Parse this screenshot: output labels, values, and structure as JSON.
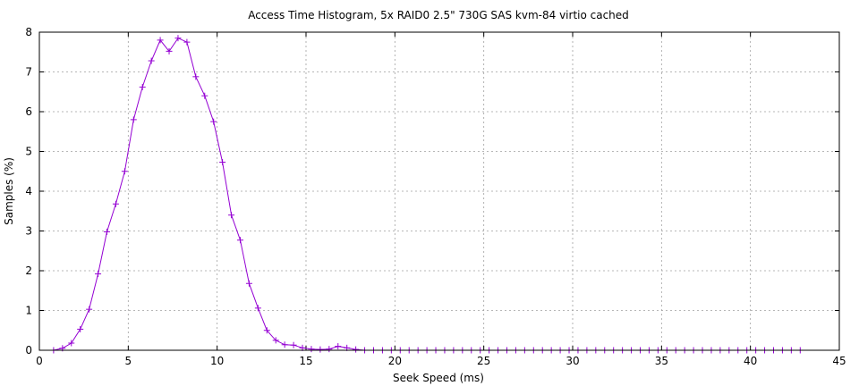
{
  "chart_data": {
    "type": "line",
    "title": "Access Time Histogram, 5x RAID0 2.5\" 730G SAS kvm-84 virtio cached",
    "xlabel": "Seek Speed (ms)",
    "ylabel": "Samples (%)",
    "xlim": [
      0,
      45
    ],
    "ylim": [
      0,
      8
    ],
    "xticks": [
      0,
      5,
      10,
      15,
      20,
      25,
      30,
      35,
      40,
      45
    ],
    "yticks": [
      0,
      1,
      2,
      3,
      4,
      5,
      6,
      7,
      8
    ],
    "grid": true,
    "series_color": "#9400d3",
    "series": [
      {
        "x": [
          0.8,
          1.3,
          1.8,
          2.3,
          2.8,
          3.3,
          3.8,
          4.3,
          4.8,
          5.3,
          5.8,
          6.3,
          6.8,
          7.3,
          7.8,
          8.3,
          8.8,
          9.3,
          9.8,
          10.3,
          10.8,
          11.3,
          11.8,
          12.3,
          12.8,
          13.3,
          13.8,
          14.3,
          14.8,
          15.3,
          15.8,
          16.3,
          16.8,
          17.3,
          17.8,
          18.3,
          18.8,
          19.3,
          19.8,
          20.3,
          20.8,
          21.3,
          21.8,
          22.3,
          22.8,
          23.3,
          23.8,
          24.3,
          24.8,
          25.3,
          25.8,
          26.3,
          26.8,
          27.3,
          27.8,
          28.3,
          28.8,
          29.3,
          29.8,
          30.3,
          30.8,
          31.3,
          31.8,
          32.3,
          32.8,
          33.3,
          33.8,
          34.3,
          34.8,
          35.3,
          35.8,
          36.3,
          36.8,
          37.3,
          37.8,
          38.3,
          38.8,
          39.3,
          39.8,
          40.3,
          40.8,
          41.3,
          41.8,
          42.3,
          42.8
        ],
        "y": [
          0.0,
          0.05,
          0.18,
          0.53,
          1.03,
          1.92,
          2.98,
          3.68,
          4.5,
          5.8,
          6.62,
          7.28,
          7.8,
          7.52,
          7.85,
          7.75,
          6.88,
          6.4,
          5.75,
          4.73,
          3.4,
          2.77,
          1.68,
          1.06,
          0.5,
          0.25,
          0.14,
          0.13,
          0.06,
          0.03,
          0.02,
          0.03,
          0.1,
          0.06,
          0.02,
          0.0,
          0.0,
          0.0,
          0.0,
          0.0,
          0.0,
          0.0,
          0.0,
          0.0,
          0.0,
          0.0,
          0.0,
          0.0,
          0.0,
          0.0,
          0.0,
          0.0,
          0.0,
          0.0,
          0.0,
          0.0,
          0.0,
          0.0,
          0.0,
          0.0,
          0.0,
          0.0,
          0.0,
          0.0,
          0.0,
          0.0,
          0.0,
          0.0,
          0.0,
          0.0,
          0.0,
          0.0,
          0.0,
          0.0,
          0.0,
          0.0,
          0.0,
          0.0,
          0.0,
          0.0,
          0.0,
          0.0,
          0.0,
          0.0,
          0.0
        ]
      }
    ]
  }
}
